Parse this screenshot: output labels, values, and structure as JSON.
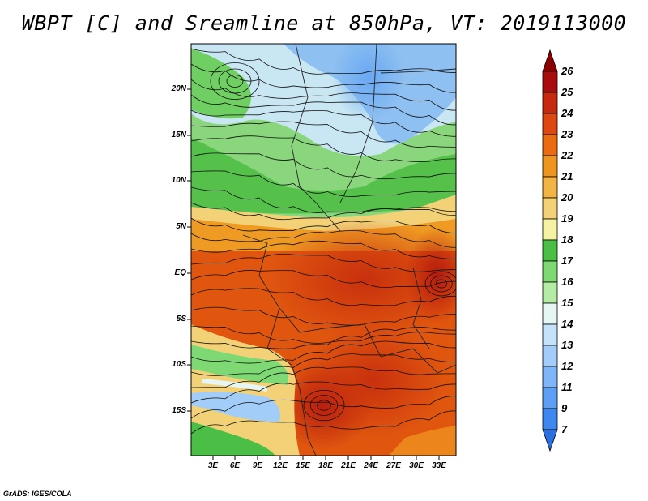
{
  "title": "WBPT [C] and Sreamline at 850hPa, VT: 2019113000",
  "credit": "GrADS: IGES/COLA",
  "map": {
    "lat_ticks": [
      "20N",
      "15N",
      "10N",
      "5N",
      "EQ",
      "5S",
      "10S",
      "15S"
    ],
    "lon_ticks": [
      "3E",
      "6E",
      "9E",
      "12E",
      "15E",
      "18E",
      "21E",
      "24E",
      "27E",
      "30E",
      "33E"
    ]
  },
  "colorbar": {
    "levels": [
      "7",
      "9",
      "11",
      "12",
      "13",
      "14",
      "15",
      "16",
      "17",
      "18",
      "19",
      "20",
      "21",
      "22",
      "23",
      "24",
      "25",
      "26"
    ],
    "colors": [
      "#2b6fe0",
      "#3d87ee",
      "#5d9ff4",
      "#7fb6f7",
      "#a3cdf9",
      "#c5e2fb",
      "#e6f6f4",
      "#b5eca5",
      "#7ed975",
      "#4bbf45",
      "#f6f2a4",
      "#f3d277",
      "#f2b545",
      "#ee9520",
      "#e96d10",
      "#dd4710",
      "#c52a0e",
      "#a80d0d",
      "#8a0000"
    ]
  }
}
